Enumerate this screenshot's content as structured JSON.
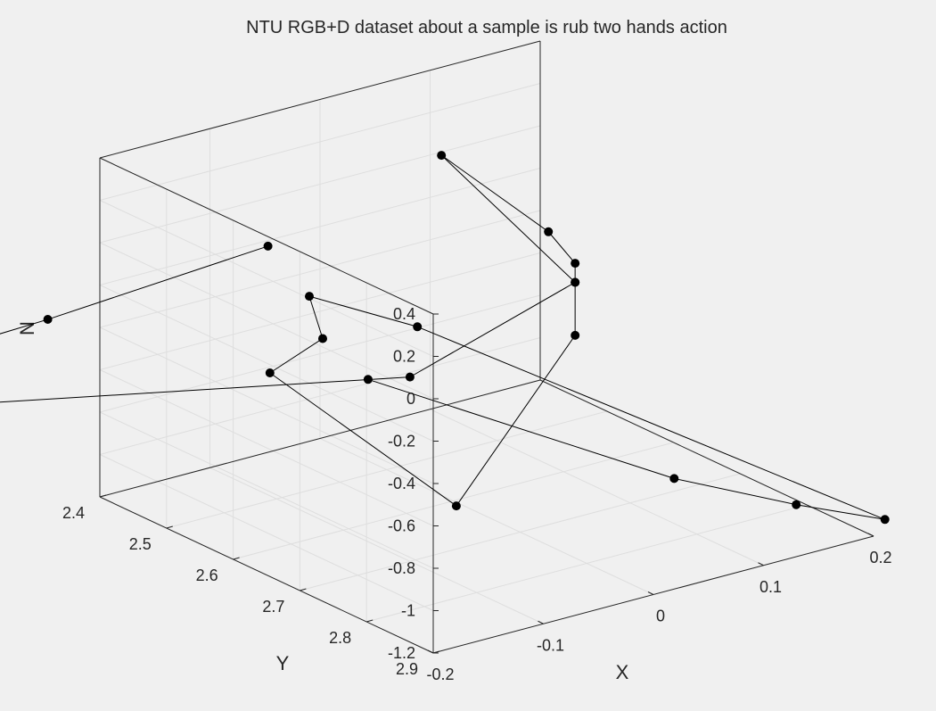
{
  "window": {
    "background": "#f0f0f0"
  },
  "chart_data": {
    "type": "scatter",
    "subtype": "3d-skeleton",
    "title": "NTU RGB+D dataset about a sample is rub two hands action",
    "xlabel": "X",
    "ylabel": "Y",
    "zlabel": "N",
    "xlim": [
      -0.2,
      0.2
    ],
    "ylim": [
      2.4,
      2.9
    ],
    "zlim": [
      -1.2,
      0.4
    ],
    "x_ticks": [
      "-0.2",
      "-0.1",
      "0",
      "0.1",
      "0.2"
    ],
    "y_ticks": [
      "2.4",
      "2.5",
      "2.6",
      "2.7",
      "2.8",
      "2.9"
    ],
    "z_ticks": [
      "-1.2",
      "-1",
      "-0.8",
      "-0.6",
      "-0.4",
      "-0.2",
      "0",
      "0.2",
      "0.4"
    ],
    "grid": true,
    "box": true,
    "marker": "filled-circle",
    "marker_color": "#000000",
    "line_color": "#000000",
    "note": "joints listed as [x, y, z]; z is the N axis; lines connect joints in order",
    "joints": [
      [
        0.08,
        2.34,
        -1.12
      ],
      [
        0.14,
        2.7,
        -1.14
      ],
      [
        0.16,
        2.85,
        -1.07
      ],
      [
        0.18,
        2.95,
        -1.02
      ],
      [
        0.04,
        2.48,
        -0.61
      ],
      [
        -0.04,
        2.45,
        -0.4
      ],
      [
        -0.04,
        2.47,
        -0.57
      ],
      [
        -0.1,
        2.49,
        -0.62
      ],
      [
        -0.07,
        2.72,
        -0.95
      ],
      [
        0.05,
        2.7,
        -0.34
      ],
      [
        0.05,
        2.7,
        -0.09
      ],
      [
        0.08,
        2.45,
        0.1
      ],
      [
        0.05,
        2.66,
        0.09
      ],
      [
        0.05,
        2.7,
        0.0
      ],
      [
        0.05,
        2.7,
        -0.09
      ],
      [
        -0.1,
        2.7,
        -0.33
      ],
      [
        -0.37,
        2.48,
        -0.41
      ],
      [
        -0.47,
        2.55,
        -0.24
      ],
      [
        -0.44,
        2.4,
        -0.12
      ],
      [
        -0.44,
        2.45,
        -0.1
      ],
      [
        -0.44,
        2.47,
        -0.16
      ],
      [
        -0.47,
        2.55,
        -0.24
      ],
      [
        -0.45,
        2.58,
        -0.02
      ],
      [
        -0.47,
        2.58,
        0.0
      ],
      [
        -0.45,
        2.53,
        -0.02
      ],
      [
        -0.32,
        2.52,
        -0.02
      ],
      [
        -0.12,
        2.52,
        0.05
      ]
    ]
  }
}
